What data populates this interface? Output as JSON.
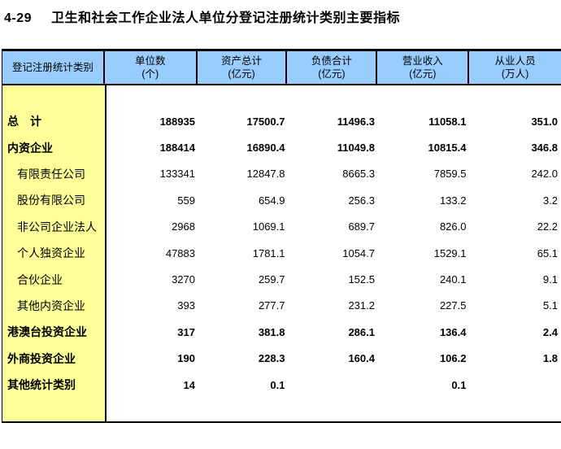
{
  "title": {
    "code": "4-29",
    "text": "卫生和社会工作企业法人单位分登记注册统计类别主要指标"
  },
  "colors": {
    "header_bg": "#99CCFF",
    "category_column_bg": "#FFFF99",
    "border": "#000000",
    "text": "#000000"
  },
  "table": {
    "header": {
      "category_label": "登记注册统计类别",
      "columns": [
        {
          "name": "单位数",
          "unit": "(个)"
        },
        {
          "name": "资产总计",
          "unit": "(亿元)"
        },
        {
          "name": "负债合计",
          "unit": "(亿元)"
        },
        {
          "name": "营业收入",
          "unit": "(亿元)"
        },
        {
          "name": "从业人员",
          "unit": "(万人)"
        }
      ]
    },
    "rows": [
      {
        "label": "总　计",
        "bold": true,
        "indent": false,
        "values": [
          "188935",
          "17500.7",
          "11496.3",
          "11058.1",
          "351.0"
        ]
      },
      {
        "label": "内资企业",
        "bold": true,
        "indent": false,
        "values": [
          "188414",
          "16890.4",
          "11049.8",
          "10815.4",
          "346.8"
        ]
      },
      {
        "label": "有限责任公司",
        "bold": false,
        "indent": true,
        "values": [
          "133341",
          "12847.8",
          "8665.3",
          "7859.5",
          "242.0"
        ]
      },
      {
        "label": "股份有限公司",
        "bold": false,
        "indent": true,
        "values": [
          "559",
          "654.9",
          "256.3",
          "133.2",
          "3.2"
        ]
      },
      {
        "label": "非公司企业法人",
        "bold": false,
        "indent": true,
        "values": [
          "2968",
          "1069.1",
          "689.7",
          "826.0",
          "22.2"
        ]
      },
      {
        "label": "个人独资企业",
        "bold": false,
        "indent": true,
        "values": [
          "47883",
          "1781.1",
          "1054.7",
          "1529.1",
          "65.1"
        ]
      },
      {
        "label": "合伙企业",
        "bold": false,
        "indent": true,
        "values": [
          "3270",
          "259.7",
          "152.5",
          "240.1",
          "9.1"
        ]
      },
      {
        "label": "其他内资企业",
        "bold": false,
        "indent": true,
        "values": [
          "393",
          "277.7",
          "231.2",
          "227.5",
          "5.1"
        ]
      },
      {
        "label": "港澳台投资企业",
        "bold": true,
        "indent": false,
        "values": [
          "317",
          "381.8",
          "286.1",
          "136.4",
          "2.4"
        ]
      },
      {
        "label": "外商投资企业",
        "bold": true,
        "indent": false,
        "values": [
          "190",
          "228.3",
          "160.4",
          "106.2",
          "1.8"
        ]
      },
      {
        "label": "其他统计类别",
        "bold": true,
        "indent": false,
        "values": [
          "14",
          "0.1",
          "",
          "0.1",
          ""
        ]
      }
    ]
  }
}
